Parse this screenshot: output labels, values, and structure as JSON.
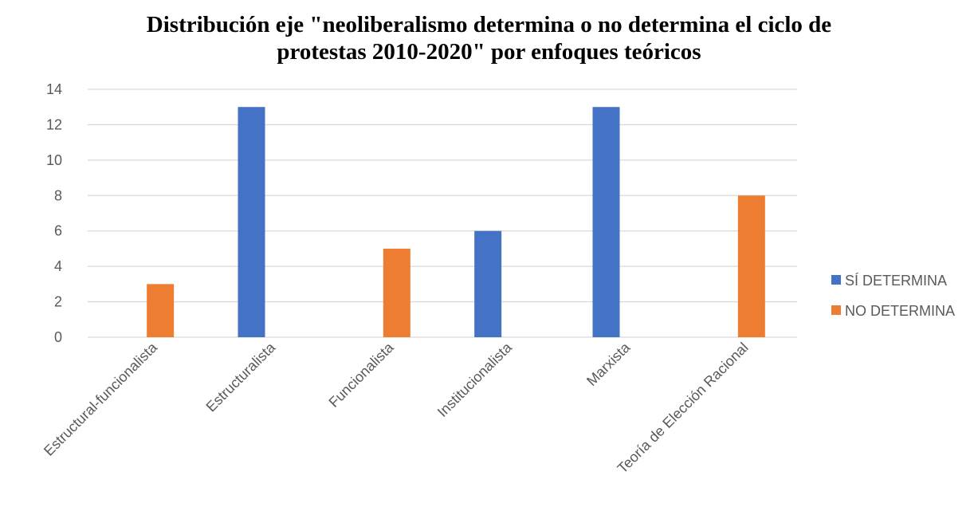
{
  "chart_data": {
    "type": "bar",
    "title_lines": [
      "Distribución eje \"neoliberalismo determina o no determina el ciclo de",
      "protestas 2010-2020\" por enfoques teóricos"
    ],
    "categories": [
      "Estructural-funcionalista",
      "Estructuralista",
      "Funcionalista",
      "Institucionalista",
      "Marxista",
      "Teoría de Elección Racional"
    ],
    "series": [
      {
        "name": "SÍ DETERMINA",
        "color": "#4472C4",
        "values": [
          0,
          13,
          0,
          6,
          13,
          0
        ]
      },
      {
        "name": "NO DETERMINA",
        "color": "#ED7D31",
        "values": [
          3,
          0,
          5,
          0,
          0,
          8
        ]
      }
    ],
    "ylim": [
      0,
      14
    ],
    "yticks": [
      0,
      2,
      4,
      6,
      8,
      10,
      12,
      14
    ],
    "grid": true,
    "legend_position": "right"
  }
}
